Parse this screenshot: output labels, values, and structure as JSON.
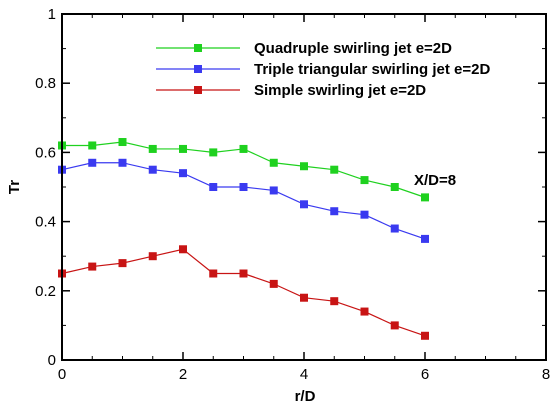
{
  "chart_data": {
    "type": "line",
    "xlabel": "r/D",
    "ylabel": "Tr",
    "xlim": [
      0,
      8
    ],
    "ylim": [
      0,
      1
    ],
    "x_ticks": [
      "0",
      "2",
      "4",
      "6",
      "8"
    ],
    "y_ticks": [
      "0",
      "0.2",
      "0.4",
      "0.6",
      "0.8",
      "1"
    ],
    "grid": false,
    "legend": "top-right",
    "annotation": "X/D=8",
    "x": [
      0,
      0.5,
      1,
      1.5,
      2,
      2.5,
      3,
      3.5,
      4,
      4.5,
      5,
      5.5,
      6
    ],
    "series": [
      {
        "name": "Quadruple swirling jet e=2D",
        "color": "#1fd11f",
        "marker": "square",
        "values": [
          0.62,
          0.62,
          0.63,
          0.61,
          0.61,
          0.6,
          0.61,
          0.57,
          0.56,
          0.55,
          0.52,
          0.5,
          0.47
        ]
      },
      {
        "name": "Triple triangular swirling jet e=2D",
        "color": "#3a3af0",
        "marker": "square",
        "values": [
          0.55,
          0.57,
          0.57,
          0.55,
          0.54,
          0.5,
          0.5,
          0.49,
          0.45,
          0.43,
          0.42,
          0.38,
          0.35
        ]
      },
      {
        "name": "Simple swirling jet e=2D",
        "color": "#c81414",
        "marker": "square",
        "values": [
          0.25,
          0.27,
          0.28,
          0.3,
          0.32,
          0.25,
          0.25,
          0.22,
          0.18,
          0.17,
          0.14,
          0.1,
          0.07
        ]
      }
    ]
  }
}
